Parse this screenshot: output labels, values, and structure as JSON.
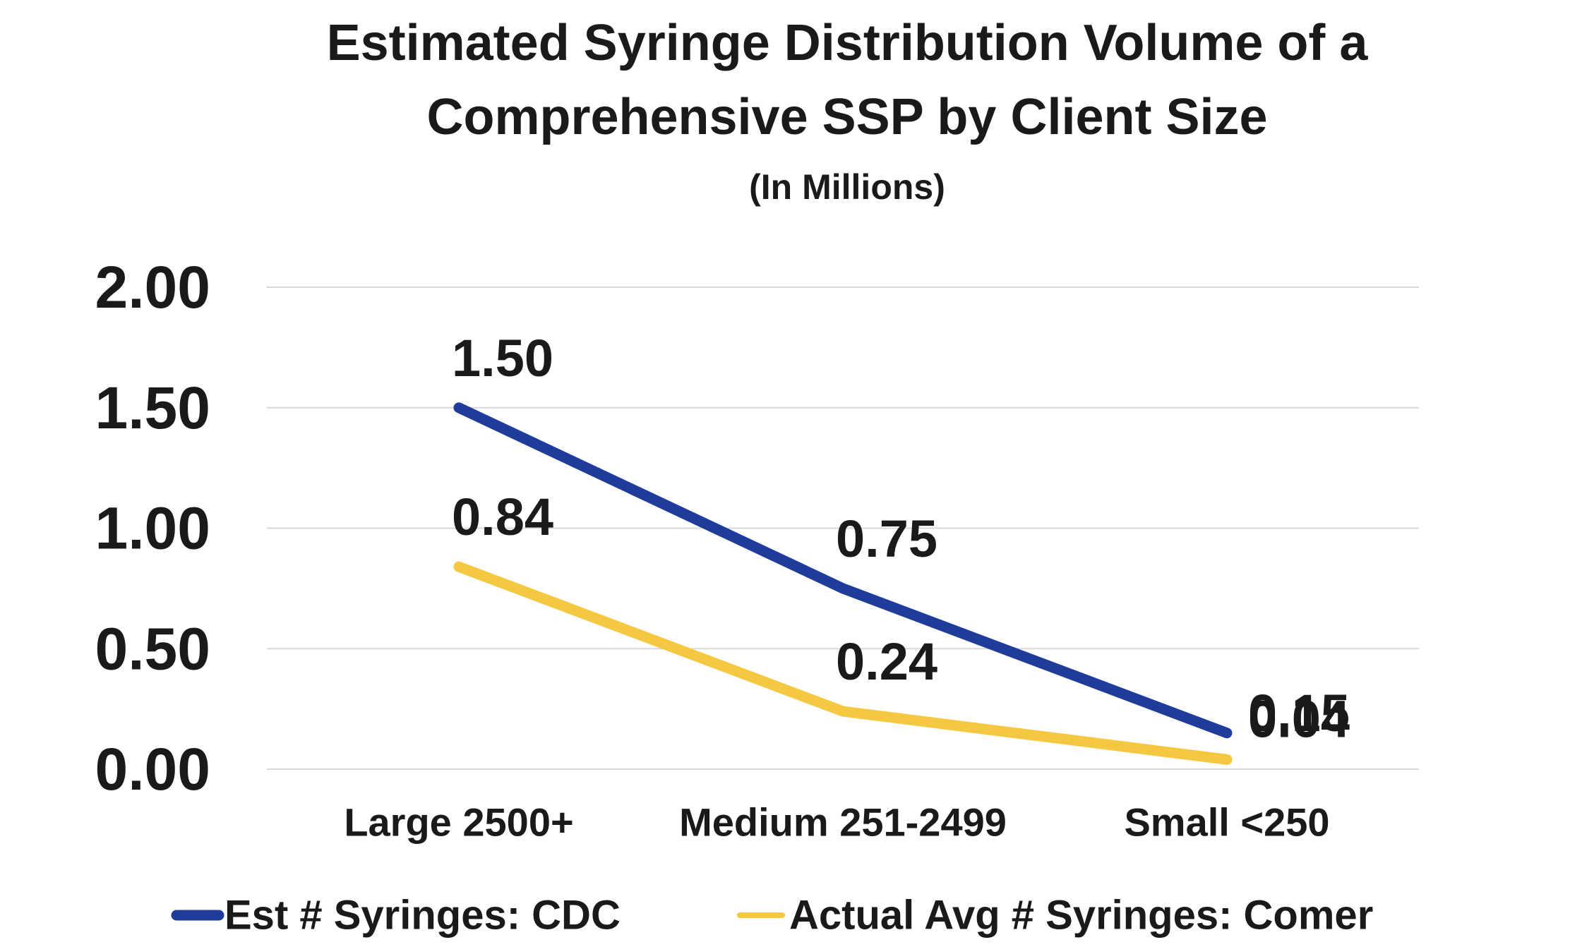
{
  "chart_data": {
    "type": "line",
    "title": "Estimated Syringe Distribution Volume of a Comprehensive SSP by Client Size",
    "title_lines": [
      "Estimated Syringe Distribution Volume of a",
      "Comprehensive SSP by Client Size"
    ],
    "subtitle": "(In Millions)",
    "xlabel": "",
    "ylabel": "",
    "categories": [
      "Large 2500+",
      "Medium 251-2499",
      "Small <250"
    ],
    "ylim": [
      0,
      2
    ],
    "y_ticks": [
      0,
      0.5,
      1,
      1.5,
      2
    ],
    "y_tick_labels": [
      "0.00",
      "0.50",
      "1.00",
      "1.50",
      "2.00"
    ],
    "grid": true,
    "legend_position": "bottom",
    "series": [
      {
        "name": "Est # Syringes: CDC",
        "values": [
          1.5,
          0.75,
          0.15
        ],
        "labels": [
          "1.50",
          "0.75",
          "0.15"
        ],
        "color": "#1f3c9a"
      },
      {
        "name": "Actual Avg # Syringes: Comer",
        "values": [
          0.84,
          0.24,
          0.04
        ],
        "labels": [
          "0.84",
          "0.24",
          "0.04"
        ],
        "color": "#f5c842"
      }
    ]
  }
}
